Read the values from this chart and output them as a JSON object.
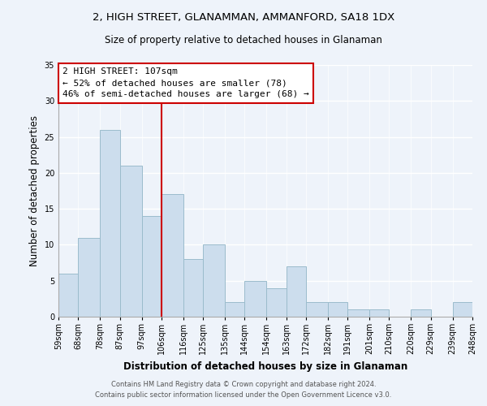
{
  "title": "2, HIGH STREET, GLANAMMAN, AMMANFORD, SA18 1DX",
  "subtitle": "Size of property relative to detached houses in Glanaman",
  "xlabel": "Distribution of detached houses by size in Glanaman",
  "ylabel": "Number of detached properties",
  "bar_edges": [
    59,
    68,
    78,
    87,
    97,
    106,
    116,
    125,
    135,
    144,
    154,
    163,
    172,
    182,
    191,
    201,
    210,
    220,
    229,
    239,
    248
  ],
  "bar_heights": [
    6,
    11,
    26,
    21,
    14,
    17,
    8,
    10,
    2,
    5,
    4,
    7,
    2,
    2,
    1,
    1,
    0,
    1,
    0,
    2
  ],
  "bar_color": "#ccdded",
  "bar_edgecolor": "#9bbccc",
  "vline_x": 106,
  "vline_color": "#cc0000",
  "ylim": [
    0,
    35
  ],
  "yticks": [
    0,
    5,
    10,
    15,
    20,
    25,
    30,
    35
  ],
  "annotation_title": "2 HIGH STREET: 107sqm",
  "annotation_line1": "← 52% of detached houses are smaller (78)",
  "annotation_line2": "46% of semi-detached houses are larger (68) →",
  "footer_line1": "Contains HM Land Registry data © Crown copyright and database right 2024.",
  "footer_line2": "Contains public sector information licensed under the Open Government Licence v3.0.",
  "tick_labels": [
    "59sqm",
    "68sqm",
    "78sqm",
    "87sqm",
    "97sqm",
    "106sqm",
    "116sqm",
    "125sqm",
    "135sqm",
    "144sqm",
    "154sqm",
    "163sqm",
    "172sqm",
    "182sqm",
    "191sqm",
    "201sqm",
    "210sqm",
    "220sqm",
    "229sqm",
    "239sqm",
    "248sqm"
  ],
  "background_color": "#eef3fa",
  "title_fontsize": 9.5,
  "subtitle_fontsize": 8.5,
  "annotation_fontsize": 8,
  "axis_label_fontsize": 8.5,
  "tick_fontsize": 7,
  "footer_fontsize": 6
}
